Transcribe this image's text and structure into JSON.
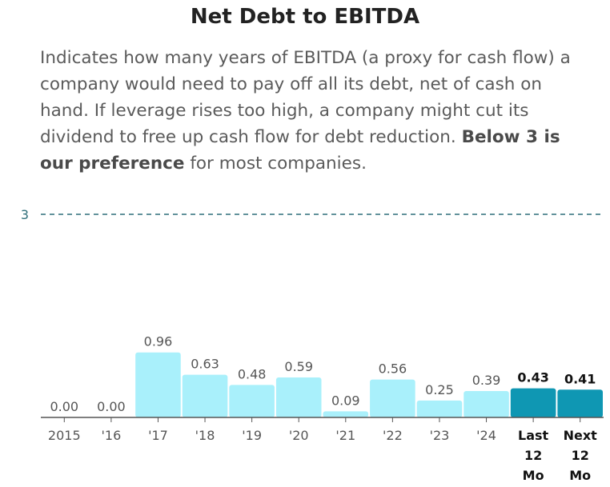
{
  "title": "Net Debt to EBITDA",
  "description": {
    "text_1": "Indicates how many years of EBITDA (a proxy for cash flow) a company would need to pay off all its debt, net of cash on hand. If leverage rises too high, a company might cut its dividend to free up cash flow for debt reduction. ",
    "bold_1": "Below 3 is our preference",
    "text_2": " for most companies."
  },
  "colors": {
    "bar_light": "#a9f0fb",
    "bar_dark": "#0f97b3",
    "reference_line": "#2f6f7a",
    "axis": "#555555",
    "text": "#555555"
  },
  "chart_data": {
    "type": "bar",
    "categories": [
      "2015",
      "'16",
      "'17",
      "'18",
      "'19",
      "'20",
      "'21",
      "'22",
      "'23",
      "'24",
      "Last 12 Mo",
      "Next 12 Mo"
    ],
    "category_lines": [
      [
        "2015"
      ],
      [
        "'16"
      ],
      [
        "'17"
      ],
      [
        "'18"
      ],
      [
        "'19"
      ],
      [
        "'20"
      ],
      [
        "'21"
      ],
      [
        "'22"
      ],
      [
        "'23"
      ],
      [
        "'24"
      ],
      [
        "Last",
        "12",
        "Mo"
      ],
      [
        "Next",
        "12",
        "Mo"
      ]
    ],
    "values": [
      0.0,
      0.0,
      0.96,
      0.63,
      0.48,
      0.59,
      0.09,
      0.56,
      0.25,
      0.39,
      0.43,
      0.41
    ],
    "value_labels": [
      "0.00",
      "0.00",
      "0.96",
      "0.63",
      "0.48",
      "0.59",
      "0.09",
      "0.56",
      "0.25",
      "0.39",
      "0.43",
      "0.41"
    ],
    "highlighted": [
      false,
      false,
      false,
      false,
      false,
      false,
      false,
      false,
      false,
      false,
      true,
      true
    ],
    "reference_line": {
      "value": 3,
      "label": "3"
    },
    "ylim": [
      0,
      3
    ],
    "grid": false,
    "title": "Net Debt to EBITDA",
    "xlabel": "",
    "ylabel": ""
  }
}
